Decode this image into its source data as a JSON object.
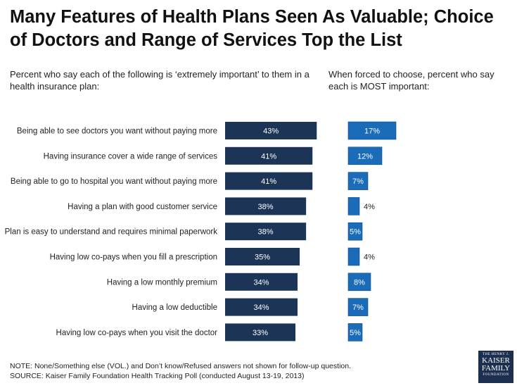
{
  "title": "Many Features of Health Plans Seen As Valuable; Choice of Doctors and Range of Services Top the List",
  "chart_data": [
    {
      "type": "bar",
      "orientation": "horizontal",
      "title": "Percent who say each of the following is ‘extremely important’ to them in a health insurance plan:",
      "categories": [
        "Being able to see doctors you want without paying more",
        "Having insurance cover a wide range of services",
        "Being able to go to hospital you want without paying more",
        "Having a plan with good customer service",
        "Plan is easy to understand and requires minimal paperwork",
        "Having low co-pays when you fill a prescription",
        "Having a low monthly premium",
        "Having a low deductible",
        "Having low co-pays when you visit the doctor"
      ],
      "values": [
        43,
        41,
        41,
        38,
        38,
        35,
        34,
        34,
        33
      ],
      "labels": [
        "43%",
        "41%",
        "41%",
        "38%",
        "38%",
        "35%",
        "34%",
        "34%",
        "33%"
      ],
      "color": "#1c3557",
      "xlim": [
        0,
        100
      ],
      "grid": false
    },
    {
      "type": "bar",
      "orientation": "horizontal",
      "title": "When forced to choose, percent who say each is MOST important:",
      "categories": [
        "Being able to see doctors you want without paying more",
        "Having insurance cover a wide range of services",
        "Being able to go to hospital you want without paying more",
        "Having a plan with good customer service",
        "Plan is easy to understand and requires minimal paperwork",
        "Having low co-pays when you fill a prescription",
        "Having a low monthly premium",
        "Having a low deductible",
        "Having low co-pays when you visit the doctor"
      ],
      "values": [
        17,
        12,
        7,
        4,
        5,
        4,
        8,
        7,
        5
      ],
      "labels": [
        "17%",
        "12%",
        "7%",
        "4%",
        "5%",
        "4%",
        "8%",
        "7%",
        "5%"
      ],
      "color": "#1a6bb8",
      "xlim": [
        0,
        100
      ],
      "grid": false
    }
  ],
  "note": "NOTE: None/Something else (VOL.) and Don’t know/Refused answers not shown for follow-up question.",
  "source": "SOURCE: Kaiser Family Foundation Health Tracking Poll (conducted August 13-19, 2013)",
  "logo": {
    "line1": "THE HENRY J.",
    "line2": "KAISER",
    "line3": "FAMILY",
    "line4": "FOUNDATION"
  }
}
